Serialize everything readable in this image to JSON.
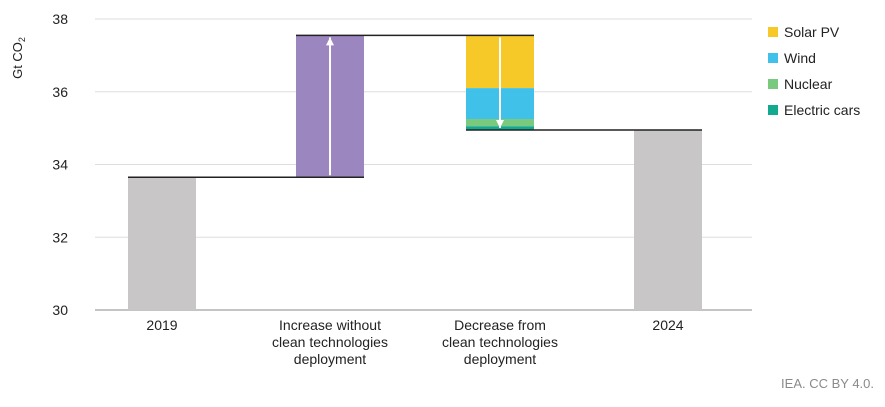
{
  "chart_data": {
    "type": "bar",
    "variant": "waterfall",
    "ylabel_main": "Gt CO",
    "ylabel_sub": "2",
    "ylim": [
      30,
      38
    ],
    "yticks": [
      30,
      32,
      34,
      36,
      38
    ],
    "grid": true,
    "legend_position": "right",
    "categories": [
      [
        "2019"
      ],
      [
        "Increase without",
        "clean technologies",
        "deployment"
      ],
      [
        "Decrease from",
        "clean technologies",
        "deployment"
      ],
      [
        "2024"
      ]
    ],
    "totals": [
      {
        "category_index": 0,
        "value": 33.65
      },
      {
        "category_index": 3,
        "value": 34.95
      }
    ],
    "increase": {
      "category_index": 1,
      "from": 33.65,
      "to": 37.55
    },
    "decrease_stack": [
      {
        "name": "Solar PV",
        "from": 36.1,
        "to": 37.55
      },
      {
        "name": "Wind",
        "from": 35.25,
        "to": 36.1
      },
      {
        "name": "Nuclear",
        "from": 35.05,
        "to": 35.25
      },
      {
        "name": "Electric cars",
        "from": 34.95,
        "to": 35.05
      }
    ],
    "legend": [
      {
        "name": "Solar PV",
        "color": "#f7c928"
      },
      {
        "name": "Wind",
        "color": "#3fc1e9"
      },
      {
        "name": "Nuclear",
        "color": "#79c97f"
      },
      {
        "name": "Electric cars",
        "color": "#11a98f"
      }
    ],
    "colors": {
      "total": "#c8c6c7",
      "increase": "#9c86c0",
      "connector": "#222222",
      "arrow": "#ffffff",
      "grid": "#dddddd"
    }
  },
  "source": "IEA. CC BY 4.0."
}
